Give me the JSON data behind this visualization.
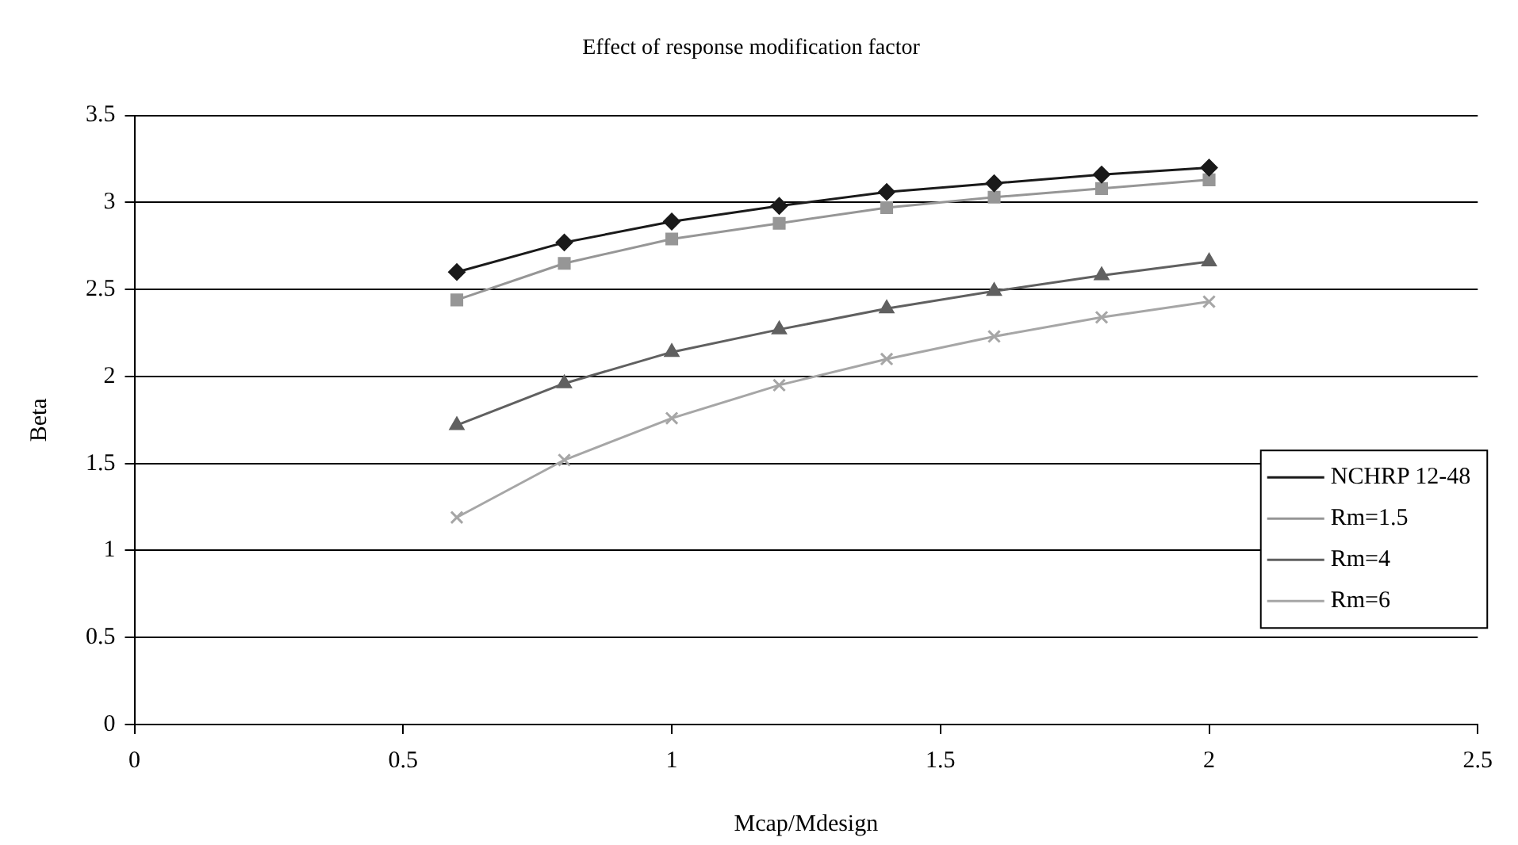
{
  "chart_data": {
    "type": "line",
    "title": "Effect of response modification factor",
    "xlabel": "Mcap/Mdesign",
    "ylabel": "Beta",
    "x": [
      0.6,
      0.8,
      1.0,
      1.2,
      1.4,
      1.6,
      1.8,
      2.0
    ],
    "series": [
      {
        "name": "NCHRP 12-48",
        "color": "#1a1a1a",
        "marker": "diamond",
        "values": [
          2.6,
          2.77,
          2.89,
          2.98,
          3.06,
          3.11,
          3.16,
          3.2
        ]
      },
      {
        "name": "Rm=1.5",
        "color": "#969696",
        "marker": "square",
        "values": [
          2.44,
          2.65,
          2.79,
          2.88,
          2.97,
          3.03,
          3.08,
          3.13
        ]
      },
      {
        "name": "Rm=4",
        "color": "#606060",
        "marker": "triangle",
        "values": [
          1.72,
          1.96,
          2.14,
          2.27,
          2.39,
          2.49,
          2.58,
          2.66
        ]
      },
      {
        "name": "Rm=6",
        "color": "#a6a6a6",
        "marker": "cross",
        "values": [
          1.19,
          1.52,
          1.76,
          1.95,
          2.1,
          2.23,
          2.34,
          2.43
        ]
      }
    ],
    "xlim": [
      0,
      2.5
    ],
    "xticks": [
      0,
      0.5,
      1,
      1.5,
      2,
      2.5
    ],
    "ylim": [
      0,
      3.5
    ],
    "yticks": [
      0,
      0.5,
      1,
      1.5,
      2,
      2.5,
      3,
      3.5
    ],
    "grid": "y",
    "legend": "right",
    "line_style": "solid"
  }
}
